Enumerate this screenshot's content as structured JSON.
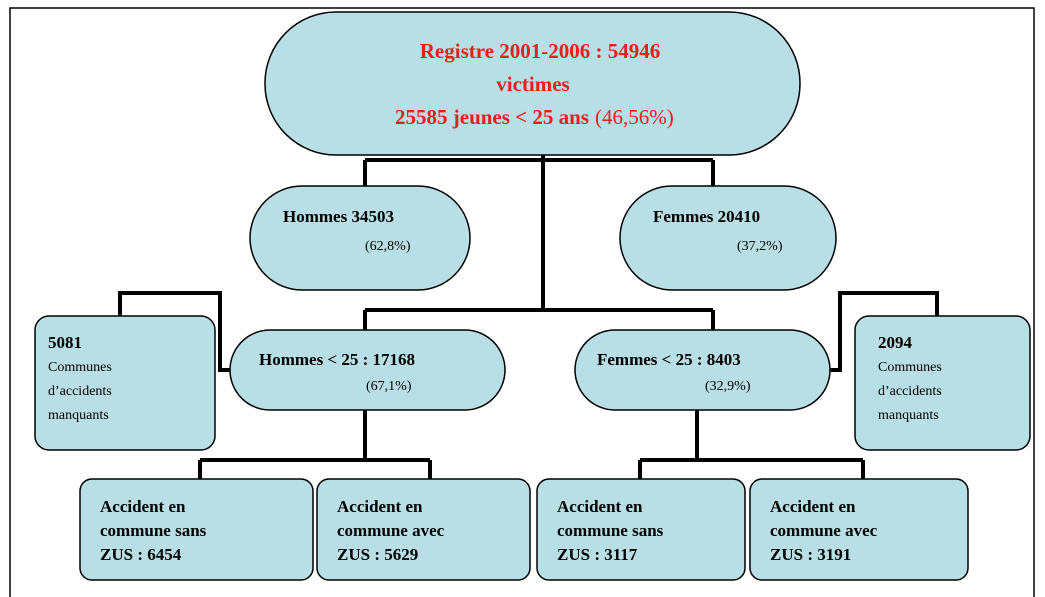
{
  "root": {
    "lines": [
      "Registre 2001-2006 : 54946",
      "victimes",
      "25585 jeunes < 25 ans"
    ],
    "percent": "(46,56%)"
  },
  "men": {
    "label": "Hommes 34503",
    "percent": "(62,8%)"
  },
  "women": {
    "label": "Femmes 20410",
    "percent": "(37,2%)"
  },
  "men_under_25": {
    "label": "Hommes < 25 : 17168",
    "percent": "(67,1%)"
  },
  "women_under_25": {
    "label": "Femmes < 25 : 8403",
    "percent": "(32,9%)"
  },
  "missing_men": {
    "number": "5081",
    "lines": [
      "Communes",
      "d’accidents",
      "manquants"
    ]
  },
  "missing_women": {
    "number": "2094",
    "lines": [
      "Communes",
      "d’accidents",
      "manquants"
    ]
  },
  "leaves": [
    {
      "lines": [
        "Accident en",
        "commune sans",
        "ZUS : 6454"
      ]
    },
    {
      "lines": [
        "Accident en",
        "commune avec",
        "ZUS : 5629"
      ]
    },
    {
      "lines": [
        "Accident en",
        "commune sans",
        "ZUS : 3117"
      ]
    },
    {
      "lines": [
        "Accident en",
        "commune avec",
        "ZUS : 3191"
      ]
    }
  ]
}
